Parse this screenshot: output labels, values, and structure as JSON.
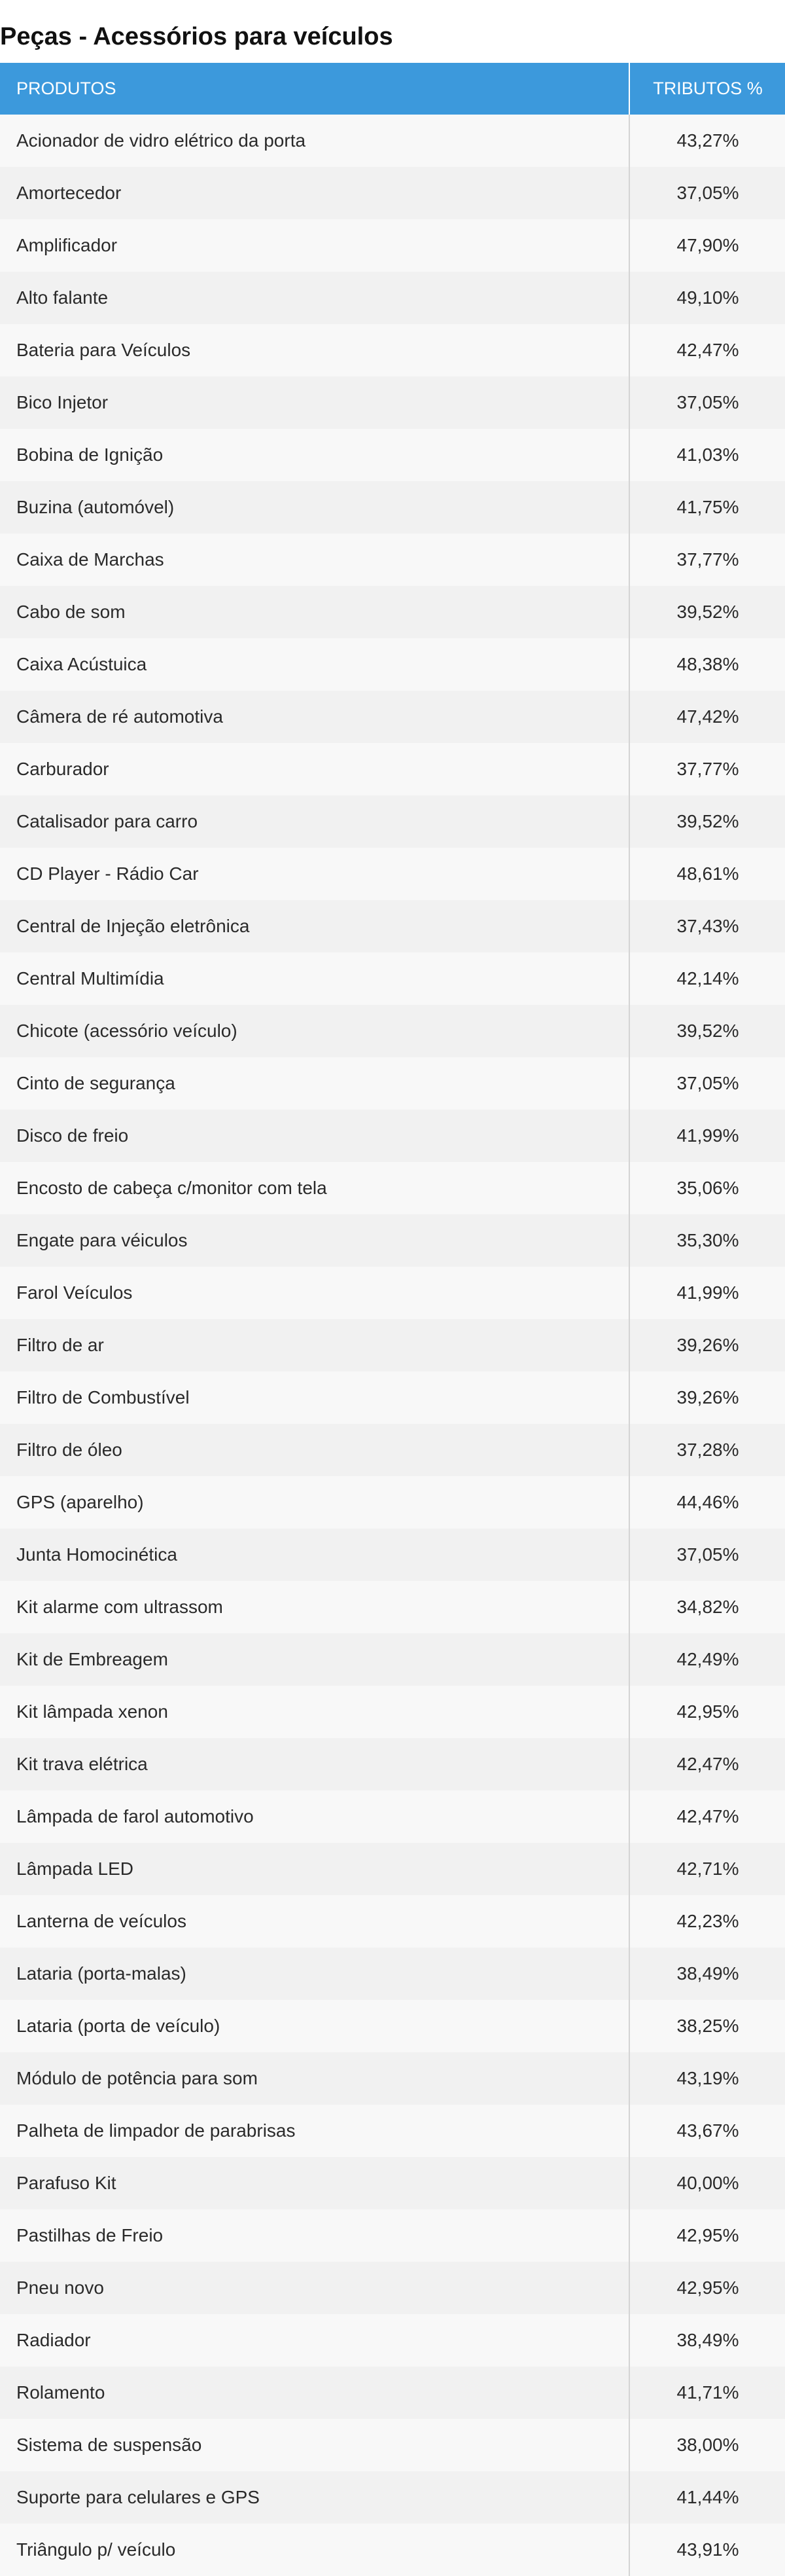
{
  "page": {
    "title": "Peças - Acessórios para veículos"
  },
  "table": {
    "headers": {
      "product": "PRODUTOS",
      "tax": "TRIBUTOS %"
    },
    "header_color": "#3c99dc",
    "rows": [
      {
        "product": "Acionador de vidro elétrico da porta",
        "tax": "43,27%"
      },
      {
        "product": "Amortecedor",
        "tax": "37,05%"
      },
      {
        "product": "Amplificador",
        "tax": "47,90%"
      },
      {
        "product": "Alto falante",
        "tax": "49,10%"
      },
      {
        "product": "Bateria para Veículos",
        "tax": "42,47%"
      },
      {
        "product": "Bico Injetor",
        "tax": "37,05%"
      },
      {
        "product": "Bobina de Ignição",
        "tax": "41,03%"
      },
      {
        "product": "Buzina (automóvel)",
        "tax": "41,75%"
      },
      {
        "product": "Caixa de Marchas",
        "tax": "37,77%"
      },
      {
        "product": "Cabo de som",
        "tax": "39,52%"
      },
      {
        "product": "Caixa Acústuica",
        "tax": "48,38%"
      },
      {
        "product": "Câmera de ré automotiva",
        "tax": "47,42%"
      },
      {
        "product": "Carburador",
        "tax": "37,77%"
      },
      {
        "product": "Catalisador para carro",
        "tax": "39,52%"
      },
      {
        "product": "CD Player - Rádio Car",
        "tax": "48,61%"
      },
      {
        "product": "Central de Injeção eletrônica",
        "tax": "37,43%"
      },
      {
        "product": "Central Multimídia",
        "tax": "42,14%"
      },
      {
        "product": "Chicote (acessório veículo)",
        "tax": "39,52%"
      },
      {
        "product": "Cinto de segurança",
        "tax": "37,05%"
      },
      {
        "product": "Disco de freio",
        "tax": "41,99%"
      },
      {
        "product": "Encosto de cabeça c/monitor com tela",
        "tax": "35,06%"
      },
      {
        "product": "Engate para véiculos",
        "tax": "35,30%"
      },
      {
        "product": "Farol Veículos",
        "tax": "41,99%"
      },
      {
        "product": "Filtro de ar",
        "tax": "39,26%"
      },
      {
        "product": "Filtro de Combustível",
        "tax": "39,26%"
      },
      {
        "product": "Filtro de óleo",
        "tax": "37,28%"
      },
      {
        "product": "GPS (aparelho)",
        "tax": "44,46%"
      },
      {
        "product": "Junta Homocinética",
        "tax": "37,05%"
      },
      {
        "product": "Kit alarme com ultrassom",
        "tax": "34,82%"
      },
      {
        "product": "Kit de Embreagem",
        "tax": "42,49%"
      },
      {
        "product": "Kit lâmpada xenon",
        "tax": "42,95%"
      },
      {
        "product": "Kit trava elétrica",
        "tax": "42,47%"
      },
      {
        "product": "Lâmpada de farol automotivo",
        "tax": "42,47%"
      },
      {
        "product": "Lâmpada LED",
        "tax": "42,71%"
      },
      {
        "product": "Lanterna de veículos",
        "tax": "42,23%"
      },
      {
        "product": "Lataria (porta-malas)",
        "tax": "38,49%"
      },
      {
        "product": "Lataria (porta de veículo)",
        "tax": "38,25%"
      },
      {
        "product": "Módulo de potência para som",
        "tax": "43,19%"
      },
      {
        "product": "Palheta de limpador de parabrisas",
        "tax": "43,67%"
      },
      {
        "product": "Parafuso Kit",
        "tax": "40,00%"
      },
      {
        "product": "Pastilhas de Freio",
        "tax": "42,95%"
      },
      {
        "product": "Pneu novo",
        "tax": "42,95%"
      },
      {
        "product": "Radiador",
        "tax": "38,49%"
      },
      {
        "product": "Rolamento",
        "tax": "41,71%"
      },
      {
        "product": "Sistema de suspensão",
        "tax": "38,00%"
      },
      {
        "product": "Suporte para celulares e GPS",
        "tax": "41,44%"
      },
      {
        "product": "Triângulo p/ veículo",
        "tax": "43,91%"
      }
    ]
  }
}
